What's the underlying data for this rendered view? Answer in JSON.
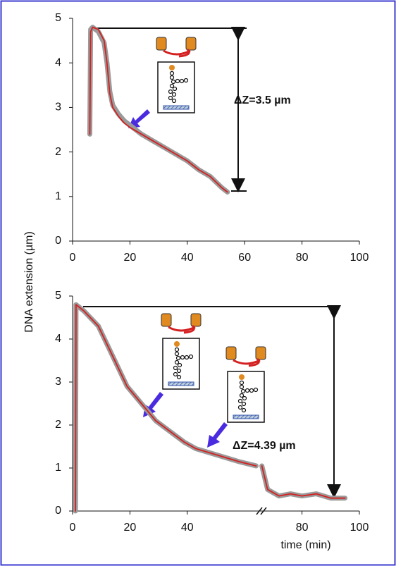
{
  "chart_data": [
    {
      "type": "line",
      "ylabel": "DNA extension (µm)",
      "annotation": "ΔZ=3.5 µm",
      "x": [
        6,
        6.3,
        7,
        9,
        11,
        12,
        13,
        14,
        16,
        18,
        20,
        24,
        28,
        32,
        36,
        40,
        44,
        48,
        52,
        54
      ],
      "series": [
        {
          "color": "#9a9a9a",
          "values": [
            2.4,
            4.75,
            4.8,
            4.7,
            4.45,
            4.0,
            3.35,
            3.05,
            2.85,
            2.7,
            2.6,
            2.4,
            2.25,
            2.1,
            1.95,
            1.8,
            1.6,
            1.45,
            1.2,
            1.1
          ]
        },
        {
          "color": "#d42020",
          "values": [
            2.4,
            4.7,
            4.8,
            4.75,
            4.5,
            4.0,
            3.3,
            3.0,
            2.8,
            2.65,
            2.55,
            2.4,
            2.25,
            2.1,
            1.95,
            1.8,
            1.6,
            1.45,
            1.2,
            1.1
          ]
        }
      ],
      "xlim": [
        0,
        100
      ],
      "xticks": [
        0,
        20,
        40,
        60,
        80,
        100
      ],
      "ylim": [
        0,
        5
      ],
      "yticks": [
        0,
        1,
        2,
        3,
        4,
        5
      ]
    },
    {
      "type": "line",
      "xlabel": "time (min)",
      "annotation": "ΔZ=4.39 µm",
      "x": [
        1,
        1.2,
        4,
        9,
        14,
        19,
        24,
        29,
        34,
        39,
        43,
        48,
        53,
        58,
        64,
        65,
        66,
        68,
        72,
        76,
        80,
        85,
        90,
        95
      ],
      "series": [
        {
          "color": "#9a9a9a",
          "values": [
            0,
            4.8,
            4.65,
            4.3,
            3.6,
            2.9,
            2.5,
            2.1,
            1.85,
            1.6,
            1.45,
            1.35,
            1.25,
            1.15,
            1.05,
            null,
            1.05,
            0.5,
            0.35,
            0.4,
            0.35,
            0.4,
            0.3,
            0.3
          ]
        },
        {
          "color": "#d42020",
          "values": [
            0,
            4.8,
            4.65,
            4.3,
            3.6,
            2.9,
            2.5,
            2.1,
            1.85,
            1.6,
            1.45,
            1.35,
            1.25,
            1.15,
            1.05,
            null,
            1.05,
            0.5,
            0.35,
            0.4,
            0.35,
            0.4,
            0.3,
            0.3
          ]
        }
      ],
      "xlim": [
        0,
        100
      ],
      "xticks": [
        0,
        20,
        40,
        80,
        100
      ],
      "ylim": [
        0,
        5
      ],
      "yticks": [
        0,
        1,
        2,
        3,
        4,
        5
      ]
    }
  ]
}
